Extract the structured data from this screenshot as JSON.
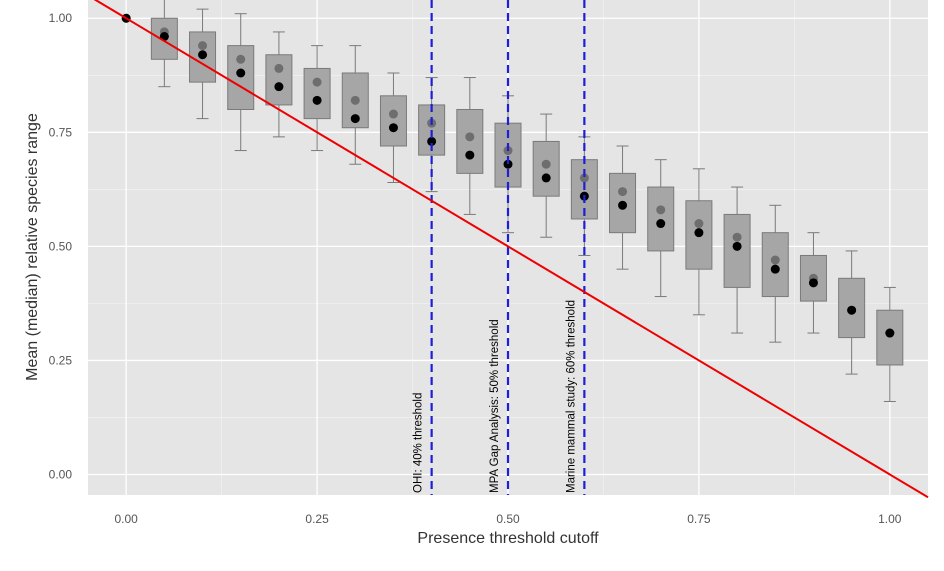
{
  "chart_data": {
    "type": "box",
    "xlabel": "Presence threshold cutoff",
    "ylabel": "Mean (median) relative species range",
    "xlim": [
      -0.05,
      1.05
    ],
    "ylim": [
      -0.045,
      1.04
    ],
    "x_ticks": [
      0.0,
      0.25,
      0.5,
      0.75,
      1.0
    ],
    "x_tick_labels": [
      "0.00",
      "0.25",
      "0.50",
      "0.75",
      "1.00"
    ],
    "y_ticks": [
      0.0,
      0.25,
      0.5,
      0.75,
      1.0
    ],
    "y_tick_labels": [
      "0.00",
      "0.25",
      "0.50",
      "0.75",
      "1.00"
    ],
    "grid": true,
    "boxes": [
      {
        "x": 0.05,
        "whisker_low": 0.85,
        "q1": 0.91,
        "q3": 1.0,
        "whisker_high": 1.05
      },
      {
        "x": 0.1,
        "whisker_low": 0.78,
        "q1": 0.86,
        "q3": 0.97,
        "whisker_high": 1.02
      },
      {
        "x": 0.15,
        "whisker_low": 0.71,
        "q1": 0.8,
        "q3": 0.94,
        "whisker_high": 1.01
      },
      {
        "x": 0.2,
        "whisker_low": 0.74,
        "q1": 0.81,
        "q3": 0.92,
        "whisker_high": 0.97
      },
      {
        "x": 0.25,
        "whisker_low": 0.71,
        "q1": 0.78,
        "q3": 0.89,
        "whisker_high": 0.94
      },
      {
        "x": 0.3,
        "whisker_low": 0.68,
        "q1": 0.76,
        "q3": 0.88,
        "whisker_high": 0.94
      },
      {
        "x": 0.35,
        "whisker_low": 0.64,
        "q1": 0.72,
        "q3": 0.83,
        "whisker_high": 0.88
      },
      {
        "x": 0.4,
        "whisker_low": 0.62,
        "q1": 0.7,
        "q3": 0.81,
        "whisker_high": 0.87
      },
      {
        "x": 0.45,
        "whisker_low": 0.57,
        "q1": 0.66,
        "q3": 0.8,
        "whisker_high": 0.87
      },
      {
        "x": 0.5,
        "whisker_low": 0.53,
        "q1": 0.63,
        "q3": 0.77,
        "whisker_high": 0.83
      },
      {
        "x": 0.55,
        "whisker_low": 0.52,
        "q1": 0.61,
        "q3": 0.73,
        "whisker_high": 0.79
      },
      {
        "x": 0.6,
        "whisker_low": 0.48,
        "q1": 0.56,
        "q3": 0.69,
        "whisker_high": 0.74
      },
      {
        "x": 0.65,
        "whisker_low": 0.45,
        "q1": 0.53,
        "q3": 0.66,
        "whisker_high": 0.72
      },
      {
        "x": 0.7,
        "whisker_low": 0.39,
        "q1": 0.49,
        "q3": 0.63,
        "whisker_high": 0.69
      },
      {
        "x": 0.75,
        "whisker_low": 0.35,
        "q1": 0.45,
        "q3": 0.6,
        "whisker_high": 0.67
      },
      {
        "x": 0.8,
        "whisker_low": 0.31,
        "q1": 0.41,
        "q3": 0.57,
        "whisker_high": 0.63
      },
      {
        "x": 0.85,
        "whisker_low": 0.29,
        "q1": 0.39,
        "q3": 0.53,
        "whisker_high": 0.59
      },
      {
        "x": 0.9,
        "whisker_low": 0.31,
        "q1": 0.38,
        "q3": 0.48,
        "whisker_high": 0.53
      },
      {
        "x": 0.95,
        "whisker_low": 0.22,
        "q1": 0.3,
        "q3": 0.43,
        "whisker_high": 0.49
      },
      {
        "x": 1.0,
        "whisker_low": 0.16,
        "q1": 0.24,
        "q3": 0.36,
        "whisker_high": 0.41
      }
    ],
    "mean_points": {
      "x": [
        0.0,
        0.05,
        0.1,
        0.15,
        0.2,
        0.25,
        0.3,
        0.35,
        0.4,
        0.45,
        0.5,
        0.55,
        0.6,
        0.65,
        0.7,
        0.75,
        0.8,
        0.85,
        0.9,
        0.95,
        1.0
      ],
      "y": [
        1.0,
        0.97,
        0.94,
        0.91,
        0.89,
        0.86,
        0.82,
        0.79,
        0.77,
        0.74,
        0.71,
        0.68,
        0.65,
        0.62,
        0.58,
        0.55,
        0.52,
        0.47,
        0.43,
        0.36,
        0.31
      ]
    },
    "median_points": {
      "x": [
        0.0,
        0.05,
        0.1,
        0.15,
        0.2,
        0.25,
        0.3,
        0.35,
        0.4,
        0.45,
        0.5,
        0.55,
        0.6,
        0.65,
        0.7,
        0.75,
        0.8,
        0.85,
        0.9,
        0.95,
        1.0
      ],
      "y": [
        1.0,
        0.96,
        0.92,
        0.88,
        0.85,
        0.82,
        0.78,
        0.76,
        0.73,
        0.7,
        0.68,
        0.65,
        0.61,
        0.59,
        0.55,
        0.53,
        0.5,
        0.45,
        0.42,
        0.36,
        0.31
      ]
    },
    "reference_line": {
      "x": [
        -0.05,
        1.05
      ],
      "y": [
        1.05,
        -0.05
      ],
      "color": "#ee0000"
    },
    "threshold_lines": [
      {
        "x": 0.4,
        "label": "OHI: 40% threshold"
      },
      {
        "x": 0.5,
        "label": "MPA Gap Analysis: 50% threshold"
      },
      {
        "x": 0.6,
        "label": "Marine mammal study: 60% threshold"
      }
    ],
    "colors": {
      "panel": "#e5e5e5",
      "grid_major": "#ffffff",
      "box_fill": "#a6a6a6",
      "box_stroke": "#7a7a7a",
      "mean_point": "#6e6e6e",
      "median_point": "#000000",
      "threshold": "#1e1ed8"
    }
  }
}
